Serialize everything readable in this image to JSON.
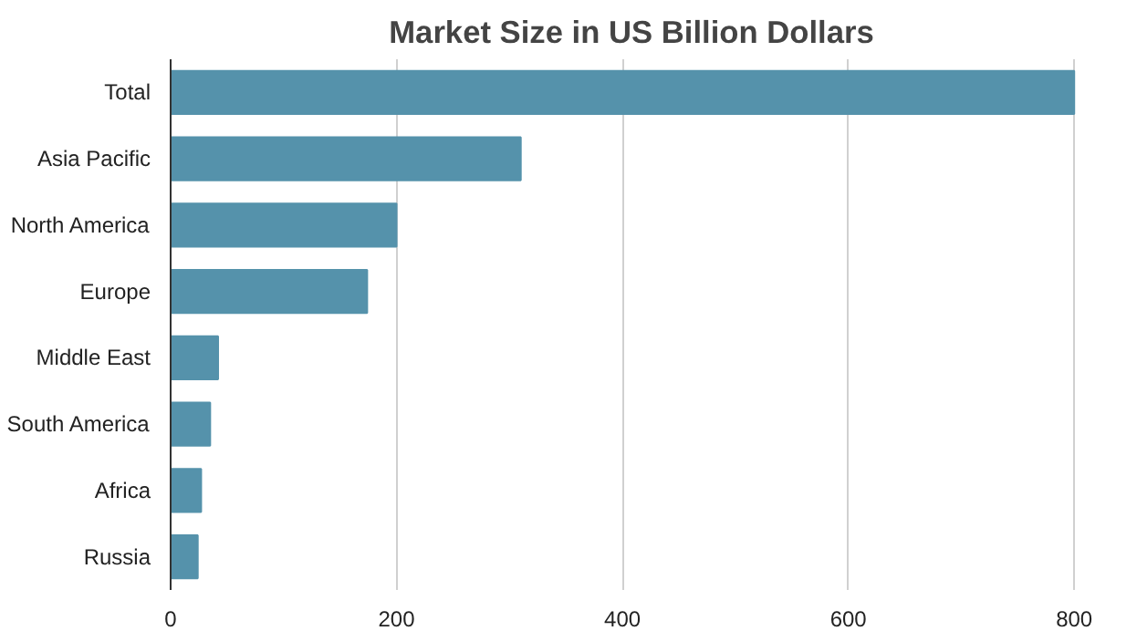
{
  "chart_data": {
    "type": "bar",
    "orientation": "horizontal",
    "title": "Market Size in US Billion Dollars",
    "categories": [
      "Total",
      "Asia Pacific",
      "North America",
      "Europe",
      "Middle East",
      "South America",
      "Africa",
      "Russia"
    ],
    "values": [
      800,
      310,
      200,
      174,
      42,
      35,
      27,
      24
    ],
    "color": "#5592ab",
    "xlim": [
      0,
      800
    ],
    "xticks": [
      0,
      200,
      400,
      600,
      800
    ],
    "grid": "x"
  }
}
